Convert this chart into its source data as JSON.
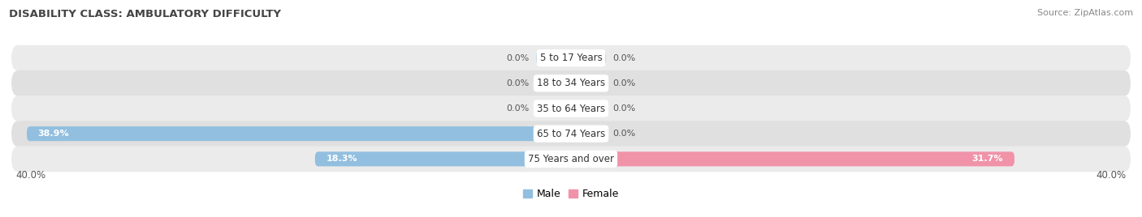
{
  "title": "DISABILITY CLASS: AMBULATORY DIFFICULTY",
  "source": "Source: ZipAtlas.com",
  "categories": [
    "5 to 17 Years",
    "18 to 34 Years",
    "35 to 64 Years",
    "65 to 74 Years",
    "75 Years and over"
  ],
  "male_values": [
    0.0,
    0.0,
    0.0,
    38.9,
    18.3
  ],
  "female_values": [
    0.0,
    0.0,
    0.0,
    0.0,
    31.7
  ],
  "male_color": "#92bfdf",
  "female_color": "#f093a8",
  "row_bg_color_odd": "#ebebeb",
  "row_bg_color_even": "#e0e0e0",
  "max_val": 40.0,
  "label_color": "#555555",
  "title_color": "#444444",
  "source_color": "#888888",
  "background_color": "#ffffff",
  "center_label_bg": "#ffffff",
  "stub_size": 2.5
}
